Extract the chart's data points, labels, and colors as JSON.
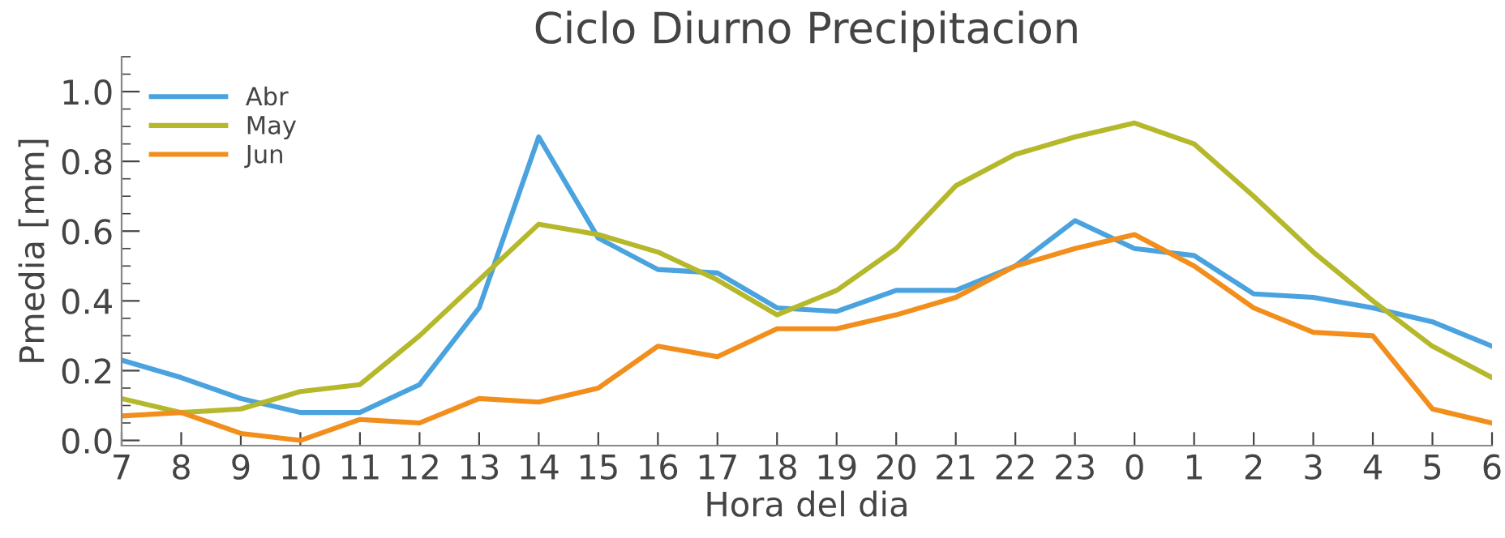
{
  "chart_data": {
    "type": "line",
    "title": "Ciclo Diurno Precipitacion",
    "xlabel": "Hora del dia",
    "ylabel": "Pmedia [mm]",
    "categories": [
      "7",
      "8",
      "9",
      "10",
      "11",
      "12",
      "13",
      "14",
      "15",
      "16",
      "17",
      "18",
      "19",
      "20",
      "21",
      "22",
      "23",
      "0",
      "1",
      "2",
      "3",
      "4",
      "5",
      "6"
    ],
    "series": [
      {
        "name": "Abr",
        "color": "#4aa3df",
        "values": [
          0.23,
          0.18,
          0.12,
          0.08,
          0.08,
          0.16,
          0.38,
          0.87,
          0.58,
          0.49,
          0.48,
          0.38,
          0.37,
          0.43,
          0.43,
          0.5,
          0.63,
          0.55,
          0.53,
          0.42,
          0.41,
          0.38,
          0.34,
          0.27
        ]
      },
      {
        "name": "May",
        "color": "#b5b82a",
        "values": [
          0.12,
          0.08,
          0.09,
          0.14,
          0.16,
          0.3,
          0.46,
          0.62,
          0.59,
          0.54,
          0.46,
          0.36,
          0.43,
          0.55,
          0.73,
          0.82,
          0.87,
          0.91,
          0.85,
          0.7,
          0.54,
          0.4,
          0.27,
          0.18
        ]
      },
      {
        "name": "Jun",
        "color": "#f28e1c",
        "values": [
          0.07,
          0.08,
          0.02,
          0.0,
          0.06,
          0.05,
          0.12,
          0.11,
          0.15,
          0.27,
          0.24,
          0.32,
          0.32,
          0.36,
          0.41,
          0.5,
          0.55,
          0.59,
          0.5,
          0.38,
          0.31,
          0.3,
          0.09,
          0.05
        ]
      }
    ],
    "ylim": [
      -0.015,
      1.1
    ],
    "yticks": [
      {
        "value": 0.0,
        "label": "0.0"
      },
      0.2,
      0.4,
      0.6,
      0.8,
      {
        "value": 1.0,
        "label": "1.0"
      }
    ],
    "grid": false,
    "legend": "top left",
    "marker": "none",
    "line_style": "solid"
  }
}
